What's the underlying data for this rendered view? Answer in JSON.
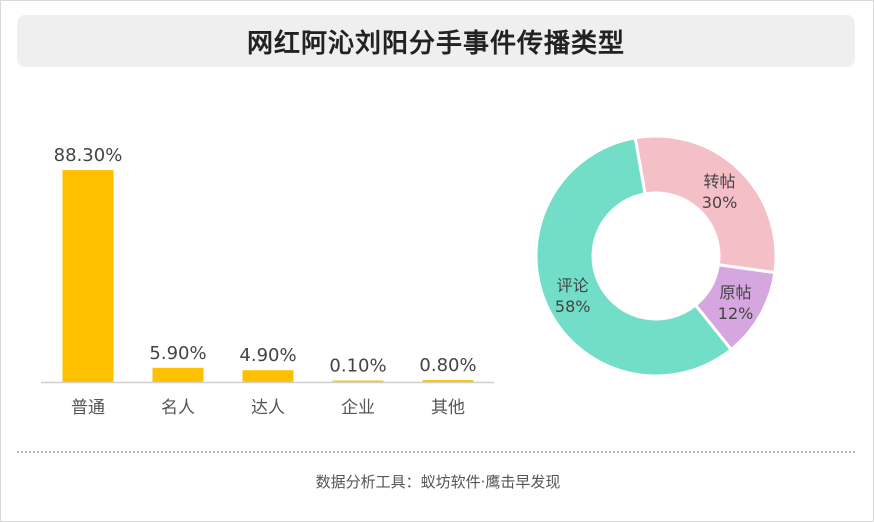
{
  "title": "网红阿沁刘阳分手事件传播类型",
  "footer": {
    "label": "数据分析工具：",
    "brand1": "蚁坊软件",
    "dot": "·",
    "brand2": "鹰击早发现"
  },
  "colors": {
    "bar": "#FFC000",
    "pie": [
      "#F4BFC6",
      "#D5A6DF",
      "#73DEC7"
    ]
  },
  "chart_data": [
    {
      "type": "bar",
      "categories": [
        "普通",
        "名人",
        "达人",
        "企业",
        "其他"
      ],
      "values": [
        88.3,
        5.9,
        4.9,
        0.1,
        0.8
      ],
      "data_labels": [
        "88.30%",
        "5.90%",
        "4.90%",
        "0.10%",
        "0.80%"
      ],
      "ylim": [
        0,
        100
      ],
      "grid": false
    },
    {
      "type": "pie",
      "donut": true,
      "labels": [
        "转帖",
        "原帖",
        "评论"
      ],
      "values": [
        30,
        12,
        58
      ],
      "value_labels": [
        "30%",
        "12%",
        "58%"
      ]
    }
  ]
}
